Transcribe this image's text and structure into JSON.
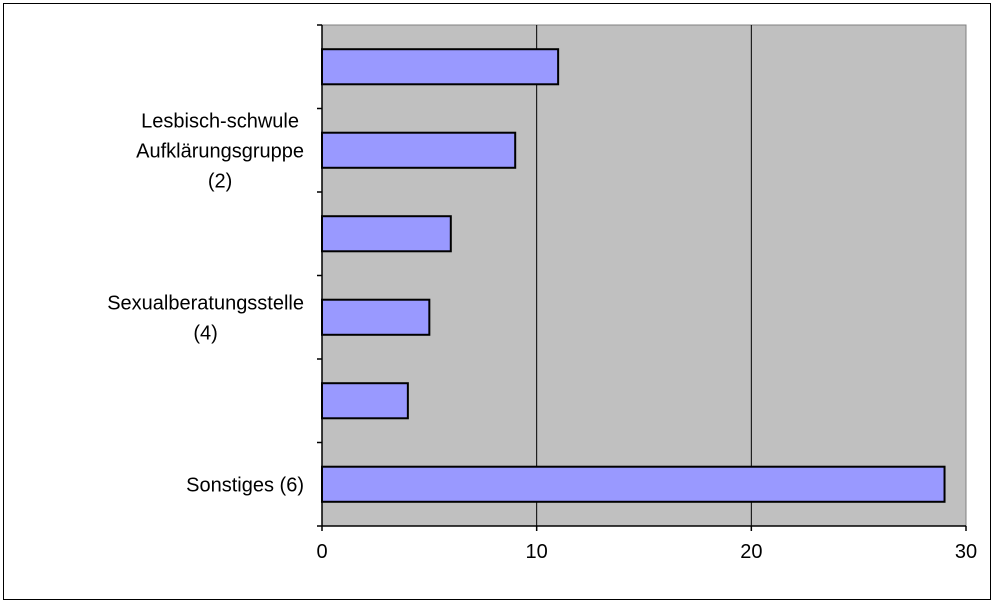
{
  "chart_data": {
    "type": "bar",
    "orientation": "horizontal",
    "categories": [
      "",
      "Lesbisch-schwule Aufklärungsgruppe (2)",
      "",
      "Sexualberatungsstelle (4)",
      "",
      "Sonstiges (6)"
    ],
    "category_label_lines": [
      [],
      [
        "Lesbisch-schwule",
        "Aufklärungsgruppe",
        "(2)"
      ],
      [],
      [
        "Sexualberatungsstelle",
        "(4)"
      ],
      [],
      [
        "Sonstiges (6)"
      ]
    ],
    "series": [
      {
        "values": [
          11,
          9,
          6,
          5,
          4,
          29
        ]
      }
    ],
    "xlim": [
      0,
      30
    ],
    "x_ticks": [
      "0",
      "10",
      "20",
      "30"
    ],
    "title": "",
    "xlabel": "",
    "ylabel": "",
    "grid": "vertical major gridlines",
    "legend": "none",
    "colors": {
      "plot_background": "#c0c0c0",
      "bar_fill": "#9999ff",
      "bar_stroke": "#000000",
      "gridline": "#000000"
    }
  }
}
